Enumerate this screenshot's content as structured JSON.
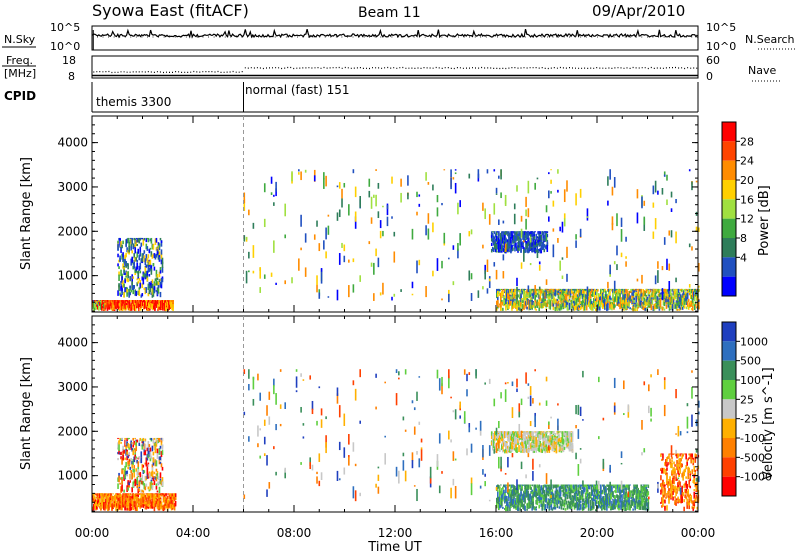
{
  "header": {
    "station": "Syowa East (fitACF)",
    "beam": "Beam 11",
    "date": "09/Apr/2010"
  },
  "nsky_panel": {
    "label": "N.Sky",
    "right_label": "N.Search",
    "ticks_left": [
      "10^5",
      "10^0"
    ],
    "ticks_right": [
      "10^5",
      "10^0"
    ]
  },
  "freq_panel": {
    "label_line1": "Freq.",
    "label_line2": "[MHz]",
    "right_label": "Nave",
    "ticks_left": [
      "18",
      "8"
    ],
    "ticks_right": [
      "60",
      "0"
    ]
  },
  "cpid_panel": {
    "label": "CPID",
    "modes": [
      {
        "name": "themis 3300",
        "start_hour": 0
      },
      {
        "name": "normal (fast) 151",
        "start_hour": 6
      }
    ]
  },
  "chart_data": [
    {
      "type": "heatmap",
      "name": "power",
      "ylabel": "Slant Range [km]",
      "xlabel": "",
      "x_range_hours": [
        0,
        24
      ],
      "ylim": [
        180,
        4600
      ],
      "y_ticks": [
        1000,
        2000,
        3000,
        4000
      ],
      "colorbar": {
        "label": "Power [dB]",
        "ticks": [
          "28",
          "24",
          "20",
          "16",
          "12",
          "8",
          "4"
        ],
        "colors_top_to_bottom": [
          "#ff0000",
          "#ff4400",
          "#ff8c00",
          "#ffd000",
          "#a0e040",
          "#3faa3f",
          "#2e7d5a",
          "#2050c0",
          "#0000ff"
        ]
      },
      "regions": [
        {
          "x": [
            0.0,
            0.5
          ],
          "y": [
            200,
            450
          ],
          "level": "mixed_high"
        },
        {
          "x": [
            0.5,
            3.2
          ],
          "y": [
            200,
            450
          ],
          "level": "high"
        },
        {
          "x": [
            1.0,
            2.8
          ],
          "y": [
            500,
            1850
          ],
          "level": "low_mid"
        },
        {
          "x": [
            15.8,
            18.0
          ],
          "y": [
            1500,
            2000
          ],
          "level": "low"
        },
        {
          "x": [
            16.0,
            24.0
          ],
          "y": [
            200,
            700
          ],
          "level": "mid"
        },
        {
          "x": [
            6.0,
            24.0
          ],
          "y": [
            400,
            3400
          ],
          "level": "scatter"
        }
      ]
    },
    {
      "type": "heatmap",
      "name": "velocity",
      "ylabel": "Slant Range [km]",
      "xlabel": "Time UT",
      "x_range_hours": [
        0,
        24
      ],
      "x_ticks": [
        "00:00",
        "04:00",
        "08:00",
        "12:00",
        "16:00",
        "20:00",
        "00:00"
      ],
      "ylim": [
        180,
        4600
      ],
      "y_ticks": [
        1000,
        2000,
        3000,
        4000
      ],
      "colorbar": {
        "label": "Velocity [m s^-1]",
        "ticks": [
          "1000",
          "500",
          "100",
          "25",
          "-25",
          "-100",
          "-500",
          "-1000"
        ],
        "colors_top_to_bottom": [
          "#1f3fbf",
          "#2e6fbf",
          "#3a8f5a",
          "#5fcf3f",
          "#c8c8c8",
          "#ffb000",
          "#ff8000",
          "#ff4000",
          "#ff0000"
        ]
      },
      "regions": [
        {
          "x": [
            0.0,
            3.3
          ],
          "y": [
            200,
            600
          ],
          "level": "negative"
        },
        {
          "x": [
            1.0,
            2.8
          ],
          "y": [
            600,
            1850
          ],
          "level": "mixed"
        },
        {
          "x": [
            15.8,
            19.0
          ],
          "y": [
            1500,
            2000
          ],
          "level": "near_zero"
        },
        {
          "x": [
            16.0,
            22.0
          ],
          "y": [
            200,
            800
          ],
          "level": "positive"
        },
        {
          "x": [
            22.5,
            24.0
          ],
          "y": [
            200,
            1500
          ],
          "level": "negative"
        },
        {
          "x": [
            6.0,
            24.0
          ],
          "y": [
            400,
            3400
          ],
          "level": "scatter"
        }
      ]
    }
  ]
}
